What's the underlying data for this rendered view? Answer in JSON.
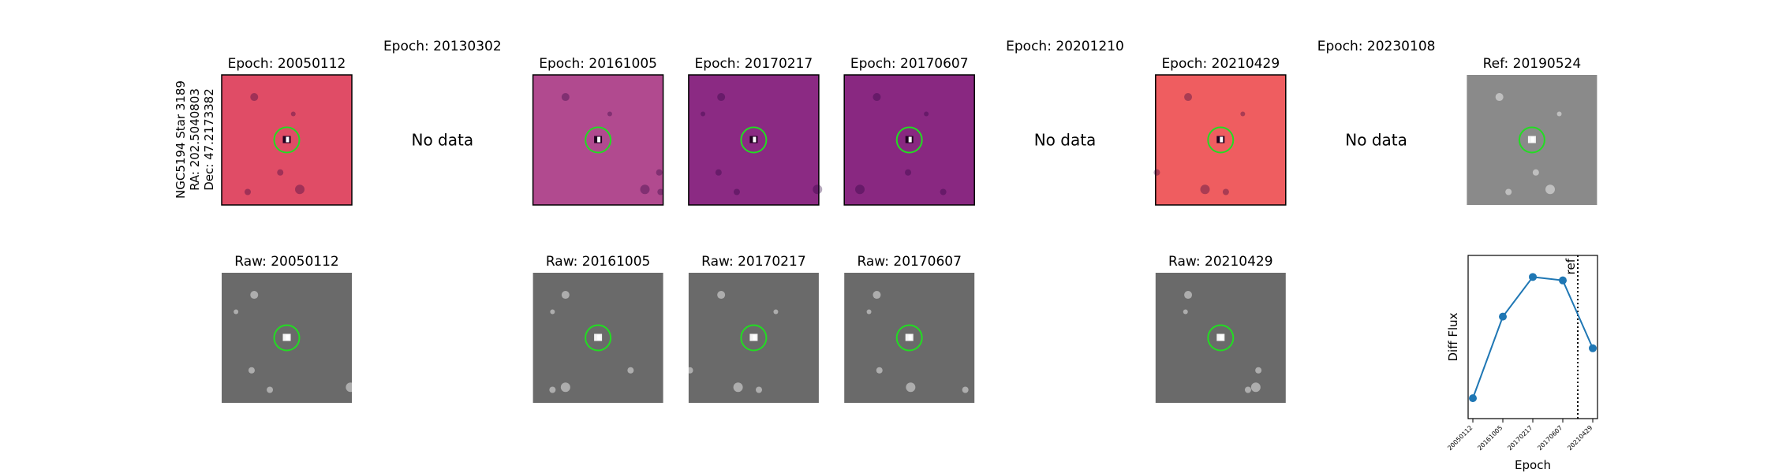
{
  "row_label": [
    "NGC5194 Star 3189",
    "RA: 202.5040803",
    "Dec: 47.2173382"
  ],
  "panels": [
    {
      "title": "Epoch: 20050112",
      "raw_title": "Raw: 20050112",
      "color": "#e04c66"
    },
    {
      "title": "Epoch: 20130302",
      "note": "No data"
    },
    {
      "title": "Epoch: 20161005",
      "raw_title": "Raw: 20161005",
      "color": "#b14a8f"
    },
    {
      "title": "Epoch: 20170217",
      "raw_title": "Raw: 20170217",
      "color": "#8b2a83"
    },
    {
      "title": "Epoch: 20170607",
      "raw_title": "Raw: 20170607",
      "color": "#892881"
    },
    {
      "title": "Epoch: 20201210",
      "note": "No data"
    },
    {
      "title": "Epoch: 20210429",
      "raw_title": "Raw: 20210429",
      "color": "#ef5d60"
    },
    {
      "title": "Epoch: 20230108",
      "note": "No data"
    },
    {
      "title": "Ref: 20190524",
      "color": "#8a8a8a"
    }
  ],
  "chart_data": {
    "type": "line",
    "xlabel": "Epoch",
    "ylabel": "Diff Flux",
    "categories": [
      "20050112",
      "20161005",
      "20170217",
      "20170607",
      "20210429"
    ],
    "series": [
      {
        "color": "#1f77b4",
        "values": [
          12.5,
          62.5,
          86.8,
          84.7,
          43.1
        ]
      }
    ],
    "ylim": [
      0,
      100
    ],
    "annotation": "ref"
  }
}
